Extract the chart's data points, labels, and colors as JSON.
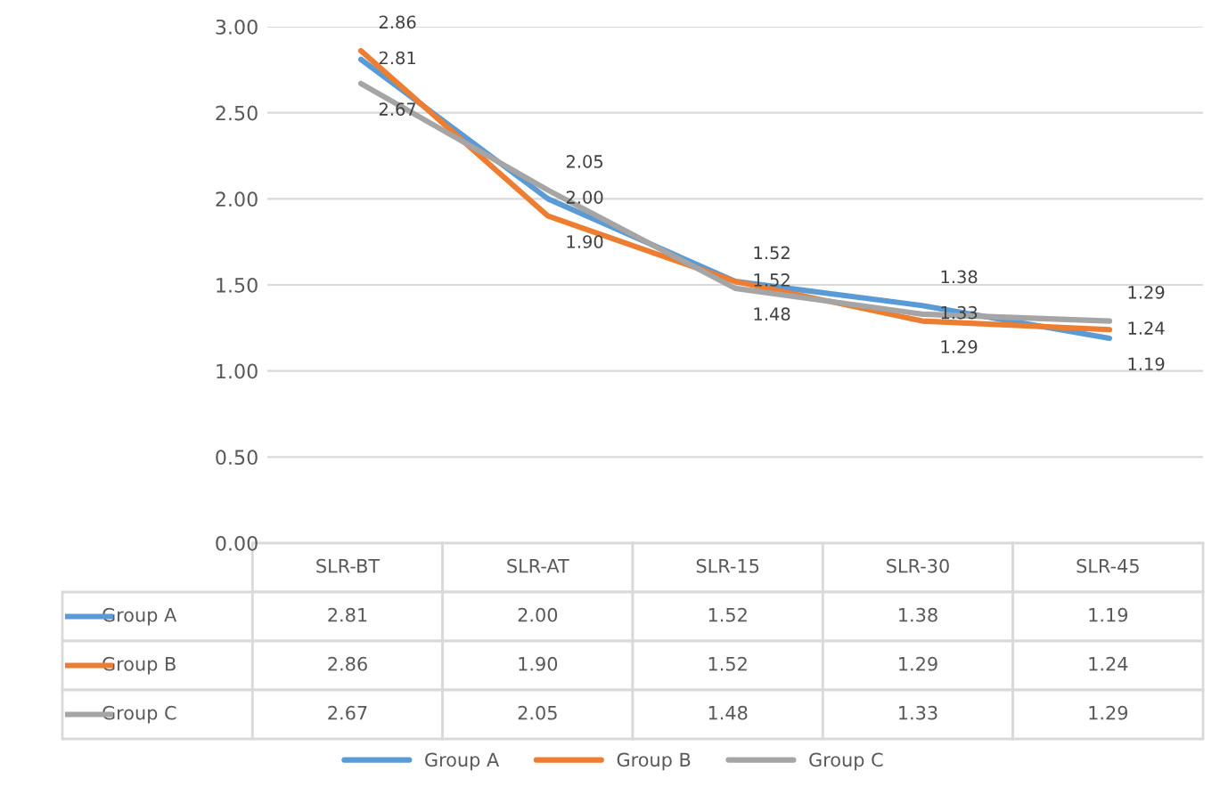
{
  "chart_data": {
    "type": "line",
    "categories": [
      "SLR-BT",
      "SLR-AT",
      "SLR-15",
      "SLR-30",
      "SLR-45"
    ],
    "series": [
      {
        "name": "Group A",
        "color": "#5b9bd5",
        "values": [
          2.81,
          2.0,
          1.52,
          1.38,
          1.19
        ],
        "value_labels": [
          "2.81",
          "2.00",
          "1.52",
          "1.38",
          "1.19"
        ]
      },
      {
        "name": "Group B",
        "color": "#ed7d31",
        "values": [
          2.86,
          1.9,
          1.52,
          1.29,
          1.24
        ],
        "value_labels": [
          "2.86",
          "1.90",
          "1.52",
          "1.29",
          "1.24"
        ]
      },
      {
        "name": "Group C",
        "color": "#a5a5a5",
        "values": [
          2.67,
          2.05,
          1.48,
          1.33,
          1.29
        ],
        "value_labels": [
          "2.67",
          "2.05",
          "1.48",
          "1.33",
          "1.29"
        ]
      }
    ],
    "ylim": [
      0,
      3
    ],
    "yticks": [
      {
        "value": 0,
        "label": "0.00"
      },
      {
        "value": 0.5,
        "label": "0.50"
      },
      {
        "value": 1,
        "label": "1.00"
      },
      {
        "value": 1.5,
        "label": "1.50"
      },
      {
        "value": 2,
        "label": "2.00"
      },
      {
        "value": 2.5,
        "label": "2.50"
      },
      {
        "value": 3,
        "label": "3.00"
      }
    ],
    "grid": "y",
    "legend": "bottom",
    "marker": "none",
    "line_style": "solid"
  }
}
